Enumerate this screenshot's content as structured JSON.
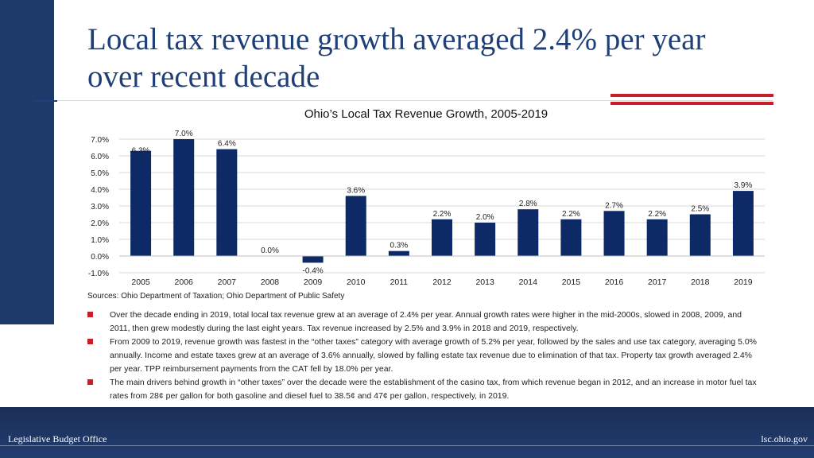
{
  "slide": {
    "title": "Local tax revenue growth averaged 2.4% per year over recent decade",
    "sources": "Sources: Ohio Department of Taxation; Ohio Department of Public Safety",
    "bullets": [
      "Over the decade ending in 2019, total local tax revenue grew at an average of 2.4% per year. Annual growth rates were higher in the mid-2000s, slowed in 2008, 2009, and 2011, then grew modestly during the last eight years. Tax revenue increased by 2.5% and 3.9% in 2018 and 2019, respectively.",
      "From 2009 to 2019, revenue growth was fastest in the “other taxes” category with average growth of 5.2% per year, followed by the sales and use tax category, averaging 5.0% annually. Income and estate taxes grew at an average of 3.6% annually, slowed by falling estate tax revenue due to elimination of that tax. Property tax growth averaged 2.4% per year. TPP reimbursement payments from the CAT fell by 18.0% per year.",
      "The main drivers behind growth in “other taxes” over the decade were the establishment of the casino tax, from which revenue began in 2012, and an increase in motor fuel tax rates from 28¢ per gallon for both gasoline and diesel fuel to 38.5¢ and 47¢ per gallon, respectively, in 2019."
    ]
  },
  "footer": {
    "left": "Legislative Budget Office",
    "right": "lsc.ohio.gov"
  },
  "colors": {
    "bar": "#0d2a66",
    "accent_red": "#c81e2c",
    "navy": "#1d3a6b"
  },
  "chart_data": {
    "type": "bar",
    "title": "Ohio’s Local Tax Revenue Growth, 2005-2019",
    "categories": [
      "2005",
      "2006",
      "2007",
      "2008",
      "2009",
      "2010",
      "2011",
      "2012",
      "2013",
      "2014",
      "2015",
      "2016",
      "2017",
      "2018",
      "2019"
    ],
    "values": [
      6.3,
      7.0,
      6.4,
      0.0,
      -0.4,
      3.6,
      0.3,
      2.2,
      2.0,
      2.8,
      2.2,
      2.7,
      2.2,
      2.5,
      3.9
    ],
    "value_labels": [
      "6.3%",
      "7.0%",
      "6.4%",
      "0.0%",
      "-0.4%",
      "3.6%",
      "0.3%",
      "2.2%",
      "2.0%",
      "2.8%",
      "2.2%",
      "2.7%",
      "2.2%",
      "2.5%",
      "3.9%"
    ],
    "ylim": [
      -1.0,
      7.0
    ],
    "yticks": [
      -1.0,
      0.0,
      1.0,
      2.0,
      3.0,
      4.0,
      5.0,
      6.0,
      7.0
    ],
    "ytick_labels": [
      "-1.0%",
      "0.0%",
      "1.0%",
      "2.0%",
      "3.0%",
      "4.0%",
      "5.0%",
      "6.0%",
      "7.0%"
    ],
    "xlabel": "",
    "ylabel": "",
    "grid": true
  }
}
